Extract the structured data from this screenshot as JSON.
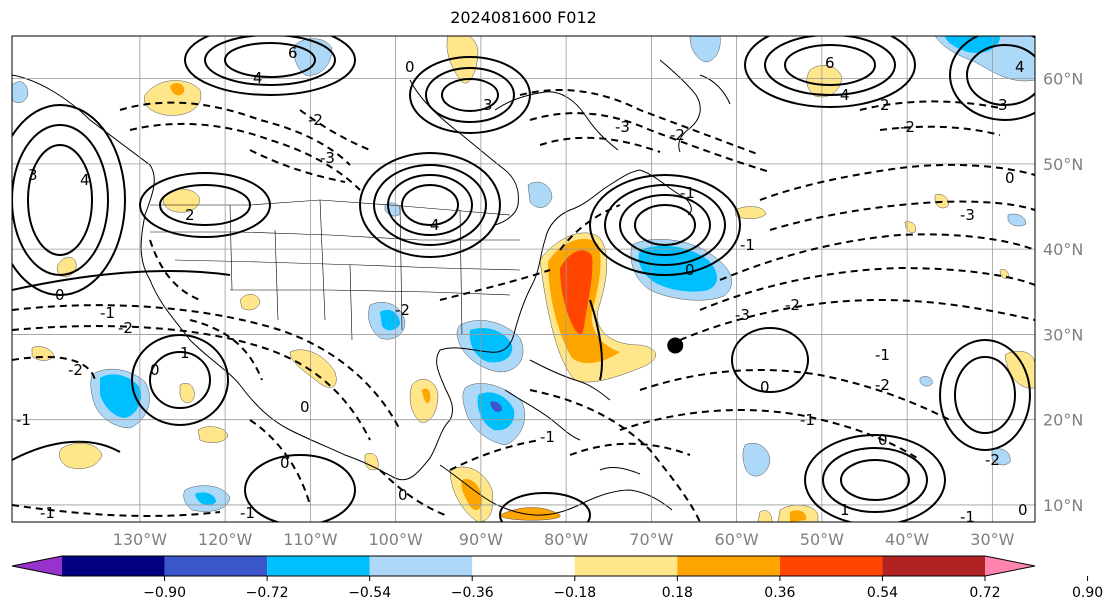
{
  "title": "2024081600 F012",
  "map": {
    "lon_range": [
      -145,
      -25
    ],
    "lat_range": [
      8,
      65
    ],
    "lon_labels": [
      "130°W",
      "120°W",
      "110°W",
      "100°W",
      "90°W",
      "80°W",
      "70°W",
      "60°W",
      "50°W",
      "40°W",
      "30°W"
    ],
    "lon_values": [
      -130,
      -120,
      -110,
      -100,
      -90,
      -80,
      -70,
      -60,
      -50,
      -40,
      -30
    ],
    "lat_labels": [
      "10°N",
      "20°N",
      "30°N",
      "40°N",
      "50°N",
      "60°N"
    ],
    "lat_values": [
      10,
      20,
      30,
      40,
      50,
      60
    ],
    "grid": true,
    "marker": {
      "lon": -67.2,
      "lat": 28.7,
      "color": "#000000"
    },
    "contour_labels": [
      "6",
      "4",
      "3",
      "2",
      "-1",
      "-2",
      "-3",
      "0",
      "1"
    ]
  },
  "colorbar": {
    "ticks": [
      "−0.90",
      "−0.72",
      "−0.54",
      "−0.36",
      "−0.18",
      "0.18",
      "0.36",
      "0.54",
      "0.72",
      "0.90"
    ],
    "colors": [
      "#9932cc",
      "#000080",
      "#3a56c8",
      "#00bfff",
      "#add8f7",
      "#ffffff",
      "#ffe68a",
      "#ffa500",
      "#ff4500",
      "#b22222",
      "#ff85b0"
    ]
  }
}
